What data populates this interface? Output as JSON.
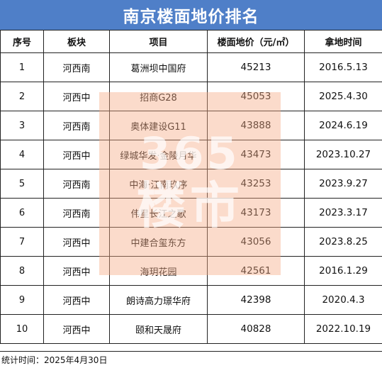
{
  "title": "南京楼面地价排名",
  "headers": [
    "序号",
    "板块",
    "项目",
    "楼面地价（元/㎡）",
    "拿地时间"
  ],
  "rows": [
    [
      "1",
      "河西南",
      "葛洲坝中国府",
      "45213",
      "2016.5.13"
    ],
    [
      "2",
      "河西中",
      "招商G28",
      "45053",
      "2025.4.30"
    ],
    [
      "3",
      "河西南",
      "奥体建设G11",
      "43888",
      "2024.6.19"
    ],
    [
      "4",
      "河西中",
      "绿城华发·金陵月华",
      "43473",
      "2023.10.27"
    ],
    [
      "5",
      "河西南",
      "中海·江南玖序",
      "43253",
      "2023.9.27"
    ],
    [
      "6",
      "河西南",
      "伟星长江之歌",
      "43173",
      "2023.3.17"
    ],
    [
      "7",
      "河西中",
      "中建合玺东方",
      "43056",
      "2023.8.25"
    ],
    [
      "8",
      "河西中",
      "海玥花园",
      "42561",
      "2016.1.29"
    ],
    [
      "9",
      "河西中",
      "朗诗高力璟华府",
      "42398",
      "2020.4.3"
    ],
    [
      "10",
      "河西中",
      "颐和天晟府",
      "40828",
      "2022.10.19"
    ]
  ],
  "footer": "统计时间：2025年4月30日",
  "watermark": {
    "number": "365",
    "text": "楼市"
  },
  "colors": {
    "title_bg": "#4f7fc8",
    "watermark": "#f6aa82"
  }
}
